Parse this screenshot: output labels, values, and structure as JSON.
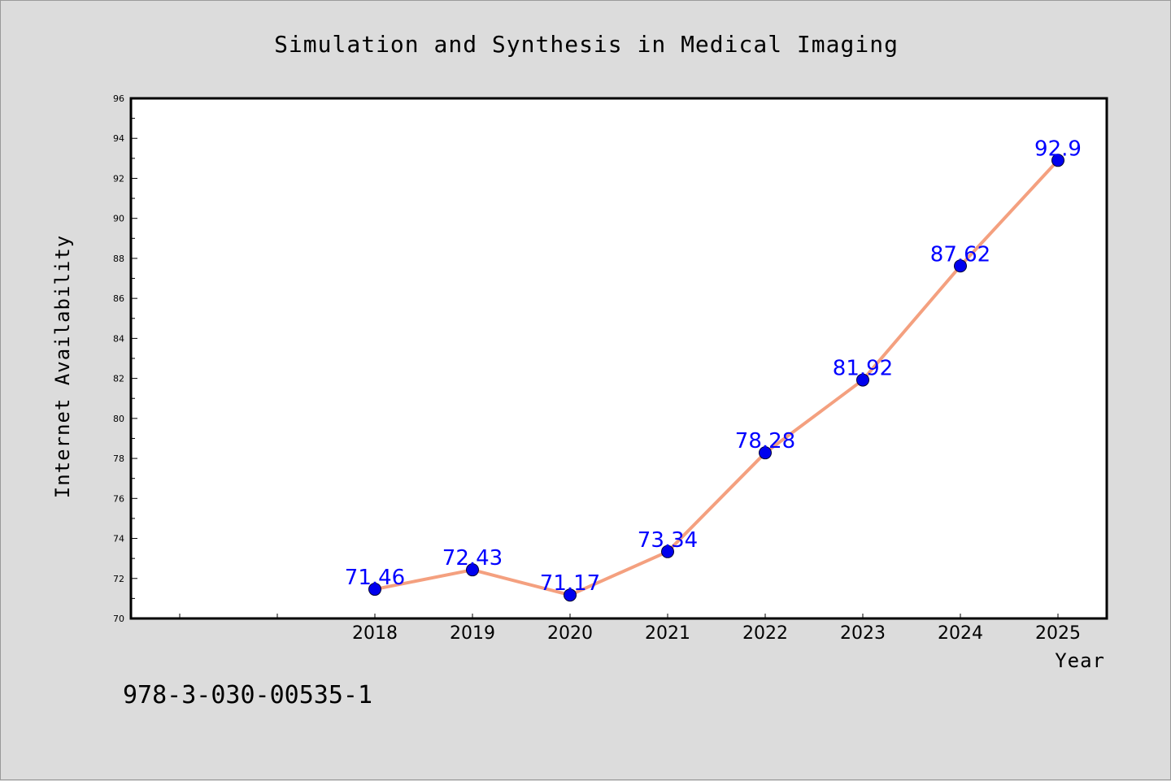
{
  "chart_data": {
    "type": "line",
    "title": "Simulation and Synthesis in Medical Imaging",
    "xlabel": "Year",
    "ylabel": "Internet Availability",
    "categories": [
      "2018",
      "2019",
      "2020",
      "2021",
      "2022",
      "2023",
      "2024",
      "2025"
    ],
    "series": [
      {
        "values": [
          71.46,
          72.43,
          71.17,
          73.34,
          78.28,
          81.92,
          87.62,
          92.9
        ],
        "labels": [
          "71.46",
          "72.43",
          "71.17",
          "73.34",
          "78.28",
          "81.92",
          "87.62",
          "92.9"
        ]
      }
    ],
    "ylim": [
      70,
      96
    ],
    "yticks": [
      "70",
      "72",
      "74",
      "76",
      "78",
      "80",
      "82",
      "84",
      "86",
      "88",
      "90",
      "92",
      "94",
      "96"
    ],
    "grid": false,
    "legend": "none"
  },
  "footer": {
    "isbn": "978-3-030-00535-1"
  },
  "colors": {
    "line": "#f4a07f",
    "marker": "#0000ee",
    "data_label": "#0000ff",
    "plot_bg": "#ffffff",
    "page_bg": "#dcdcdc"
  }
}
